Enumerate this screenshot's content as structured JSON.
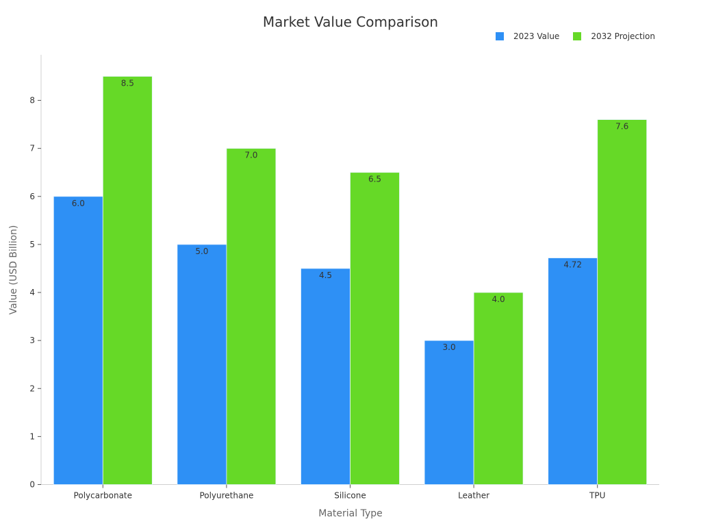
{
  "chart_data": {
    "type": "bar",
    "title": "Market Value Comparison",
    "xlabel": "Material Type",
    "ylabel": "Value (USD Billion)",
    "categories": [
      "Polycarbonate",
      "Polyurethane",
      "Silicone",
      "Leather",
      "TPU"
    ],
    "series": [
      {
        "name": "2023 Value",
        "color": "#2e90f5",
        "values": [
          6.0,
          5.0,
          4.5,
          3.0,
          4.72
        ],
        "labels": [
          "6.0",
          "5.0",
          "4.5",
          "3.0",
          "4.72"
        ]
      },
      {
        "name": "2032 Projection",
        "color": "#66d927",
        "values": [
          8.5,
          7.0,
          6.5,
          4.0,
          7.6
        ],
        "labels": [
          "8.5",
          "7.0",
          "6.5",
          "4.0",
          "7.6"
        ]
      }
    ],
    "yticks": [
      0,
      1,
      2,
      3,
      4,
      5,
      6,
      7,
      8
    ],
    "ylim": [
      0,
      8.95
    ],
    "grid": false,
    "legend_position": "top-right"
  }
}
